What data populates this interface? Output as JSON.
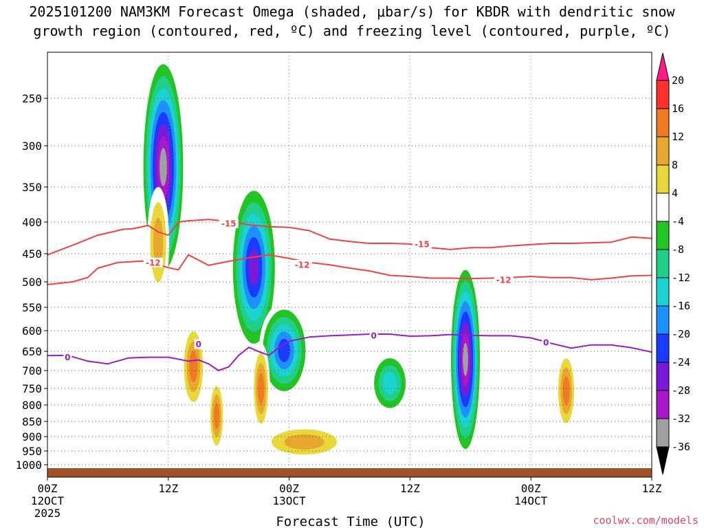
{
  "chart_data": {
    "type": "heatmap",
    "title": "2025101200 NAM3KM Forecast Omega (shaded, μbar/s) for KBDR with dendritic snow",
    "subtitle": "growth region (contoured, red, ºC) and freezing level (contoured, purple, ºC)",
    "xlabel": "Forecast Time (UTC)",
    "ylabel": "",
    "x_range_hours": [
      0,
      60
    ],
    "y_range_hpa": [
      200,
      1050
    ],
    "y_ticks": [
      250,
      300,
      350,
      400,
      450,
      500,
      550,
      600,
      650,
      700,
      750,
      800,
      850,
      900,
      950,
      1000
    ],
    "x_ticks": [
      {
        "hour": 0,
        "label": "00Z",
        "date": "12OCT",
        "year": "2025"
      },
      {
        "hour": 12,
        "label": "12Z",
        "date": "",
        "year": ""
      },
      {
        "hour": 24,
        "label": "00Z",
        "date": "13OCT",
        "year": ""
      },
      {
        "hour": 36,
        "label": "12Z",
        "date": "",
        "year": ""
      },
      {
        "hour": 48,
        "label": "00Z",
        "date": "14OCT",
        "year": ""
      },
      {
        "hour": 60,
        "label": "12Z",
        "date": "",
        "year": ""
      }
    ],
    "colorbar": {
      "levels": [
        20,
        16,
        12,
        8,
        4,
        -4,
        -8,
        -12,
        -16,
        -20,
        -24,
        -28,
        -32,
        -36
      ],
      "colors": [
        "#ff1a8c",
        "#ff3030",
        "#f07a22",
        "#e8a830",
        "#e8d83a",
        "#ffffff",
        "#22c422",
        "#1fcf8a",
        "#1bd3d3",
        "#1e90ff",
        "#1a3aff",
        "#7a1ad8",
        "#a818c8",
        "#a0a0a0",
        "#000000"
      ]
    },
    "contours": [
      {
        "name": "-15C",
        "label": "-15",
        "color": "#f04040",
        "points": [
          [
            0,
            452
          ],
          [
            2.5,
            436
          ],
          [
            5,
            420
          ],
          [
            7.5,
            411
          ],
          [
            8.5,
            410
          ],
          [
            10,
            405
          ],
          [
            11,
            415
          ],
          [
            12,
            420
          ],
          [
            13,
            400
          ],
          [
            14,
            398
          ],
          [
            16,
            396
          ],
          [
            18,
            399
          ],
          [
            20,
            404
          ],
          [
            22,
            407
          ],
          [
            24,
            408
          ],
          [
            26,
            413
          ],
          [
            28,
            426
          ],
          [
            30,
            430
          ],
          [
            32,
            433
          ],
          [
            34,
            433
          ],
          [
            36,
            434
          ],
          [
            38,
            440
          ],
          [
            40,
            443
          ],
          [
            42,
            440
          ],
          [
            44,
            440
          ],
          [
            46,
            437
          ],
          [
            48,
            435
          ],
          [
            50,
            433
          ],
          [
            52,
            433
          ],
          [
            54,
            432
          ],
          [
            56,
            431
          ],
          [
            58,
            423
          ],
          [
            60,
            425
          ]
        ]
      },
      {
        "name": "-12C",
        "label": "-12",
        "color": "#f04040",
        "points": [
          [
            0,
            505
          ],
          [
            2.5,
            500
          ],
          [
            4,
            492
          ],
          [
            5,
            475
          ],
          [
            7,
            465
          ],
          [
            9,
            463
          ],
          [
            10,
            462
          ],
          [
            11,
            469
          ],
          [
            12,
            474
          ],
          [
            13,
            478
          ],
          [
            14,
            452
          ],
          [
            16,
            470
          ],
          [
            18,
            463
          ],
          [
            20,
            457
          ],
          [
            22,
            452
          ],
          [
            24,
            458
          ],
          [
            26,
            465
          ],
          [
            28,
            469
          ],
          [
            30,
            475
          ],
          [
            32,
            480
          ],
          [
            34,
            488
          ],
          [
            36,
            490
          ],
          [
            38,
            493
          ],
          [
            40,
            493
          ],
          [
            42,
            494
          ],
          [
            44,
            493
          ],
          [
            46,
            492
          ],
          [
            48,
            490
          ],
          [
            50,
            492
          ],
          [
            52,
            492
          ],
          [
            54,
            496
          ],
          [
            56,
            493
          ],
          [
            58,
            489
          ],
          [
            60,
            488
          ]
        ]
      },
      {
        "name": "0C",
        "label": "0",
        "color": "#9a1ac8",
        "points": [
          [
            0,
            661
          ],
          [
            2,
            660
          ],
          [
            4,
            675
          ],
          [
            6,
            682
          ],
          [
            8,
            667
          ],
          [
            10,
            665
          ],
          [
            12,
            665
          ],
          [
            14,
            675
          ],
          [
            15,
            672
          ],
          [
            16,
            682
          ],
          [
            17,
            700
          ],
          [
            18,
            690
          ],
          [
            19,
            660
          ],
          [
            20,
            640
          ],
          [
            21,
            651
          ],
          [
            22,
            660
          ],
          [
            23,
            640
          ],
          [
            24,
            625
          ],
          [
            25,
            620
          ],
          [
            26,
            615
          ],
          [
            28,
            612
          ],
          [
            30,
            610
          ],
          [
            32,
            608
          ],
          [
            34,
            608
          ],
          [
            36,
            613
          ],
          [
            38,
            612
          ],
          [
            40,
            609
          ],
          [
            42,
            611
          ],
          [
            44,
            612
          ],
          [
            46,
            612
          ],
          [
            48,
            617
          ],
          [
            50,
            630
          ],
          [
            52,
            642
          ],
          [
            54,
            634
          ],
          [
            56,
            634
          ],
          [
            58,
            641
          ],
          [
            60,
            652
          ]
        ]
      }
    ],
    "contour_labels": [
      {
        "label": "-15",
        "hour": 18,
        "hpa": 402,
        "color": "#f04040"
      },
      {
        "label": "-15",
        "hour": 37.2,
        "hpa": 434,
        "color": "#f04040"
      },
      {
        "label": "-12",
        "hour": 10.5,
        "hpa": 465,
        "color": "#f04040"
      },
      {
        "label": "-12",
        "hour": 25.3,
        "hpa": 469,
        "color": "#f04040"
      },
      {
        "label": "-12",
        "hour": 45.3,
        "hpa": 496,
        "color": "#f04040"
      },
      {
        "label": "0",
        "hour": 2.0,
        "hpa": 665,
        "color": "#9a1ac8"
      },
      {
        "label": "0",
        "hour": 15.0,
        "hpa": 632,
        "color": "#9a1ac8"
      },
      {
        "label": "0",
        "hour": 32.4,
        "hpa": 611,
        "color": "#9a1ac8"
      },
      {
        "label": "0",
        "hour": 49.5,
        "hpa": 628,
        "color": "#9a1ac8"
      }
    ],
    "omega_features": [
      {
        "name": "upper-ascent-core",
        "hour": 11.5,
        "hpa": 290,
        "hour_halfwidth": 2.2,
        "hpa_halfwidth": 210,
        "min_omega": -36
      },
      {
        "name": "mid-ascent-band",
        "hour": 20.5,
        "hpa": 500,
        "hour_halfwidth": 2.4,
        "hpa_halfwidth": 160,
        "min_omega": -28
      },
      {
        "name": "lower-ascent-band",
        "hour": 23.5,
        "hpa": 660,
        "hour_halfwidth": 2.5,
        "hpa_halfwidth": 120,
        "min_omega": -24
      },
      {
        "name": "second-ascent-core",
        "hour": 41.5,
        "hpa": 720,
        "hour_halfwidth": 1.6,
        "hpa_halfwidth": 260,
        "min_omega": -36
      },
      {
        "name": "ascent-patch-33h",
        "hour": 34,
        "hpa": 740,
        "hour_halfwidth": 2.0,
        "hpa_halfwidth": 90,
        "min_omega": -16
      },
      {
        "name": "descent-14h",
        "hour": 14.5,
        "hpa": 700,
        "hour_halfwidth": 1.2,
        "hpa_halfwidth": 120,
        "min_omega": 16
      },
      {
        "name": "descent-17h",
        "hour": 16.8,
        "hpa": 840,
        "hour_halfwidth": 0.8,
        "hpa_halfwidth": 120,
        "min_omega": 16
      },
      {
        "name": "descent-21h",
        "hour": 21.2,
        "hpa": 760,
        "hour_halfwidth": 0.9,
        "hpa_halfwidth": 130,
        "min_omega": 16
      },
      {
        "name": "descent-51h",
        "hour": 51.5,
        "hpa": 765,
        "hour_halfwidth": 1.0,
        "hpa_halfwidth": 120,
        "min_omega": 16
      },
      {
        "name": "descent-11h-upper",
        "hour": 11.0,
        "hpa": 440,
        "hour_halfwidth": 1.1,
        "hpa_halfwidth": 90,
        "min_omega": 12
      },
      {
        "name": "descent-lowlevel",
        "hour": 25.5,
        "hpa": 920,
        "hour_halfwidth": 4.5,
        "hpa_halfwidth": 60,
        "min_omega": 12
      }
    ],
    "terrain_color": "#a0522d"
  },
  "credit": "coolwx.com/models"
}
